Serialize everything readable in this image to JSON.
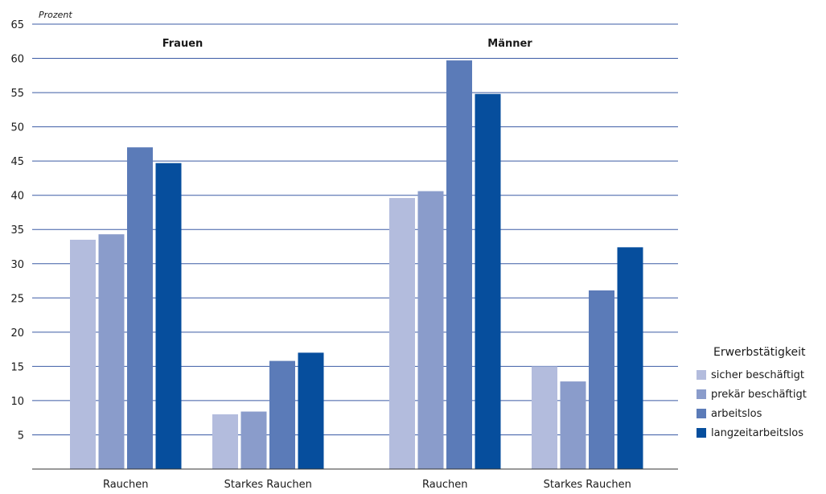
{
  "chart_data": {
    "type": "bar",
    "unit_label": "Prozent",
    "y_ticks": [
      5,
      10,
      15,
      20,
      25,
      30,
      35,
      40,
      45,
      50,
      55,
      60,
      65
    ],
    "ylim": [
      0,
      65
    ],
    "grid": true,
    "panels": [
      {
        "label": "Frauen",
        "categories": [
          "Rauchen",
          "Starkes Rauchen"
        ],
        "series": [
          {
            "name": "sicher beschäftigt",
            "values": [
              33.5,
              8.0
            ]
          },
          {
            "name": "prekär beschäftigt",
            "values": [
              34.3,
              8.4
            ]
          },
          {
            "name": "arbeitslos",
            "values": [
              47.0,
              15.8
            ]
          },
          {
            "name": "langzeitarbeitslos",
            "values": [
              44.7,
              17.0
            ]
          }
        ]
      },
      {
        "label": "Männer",
        "categories": [
          "Rauchen",
          "Starkes Rauchen"
        ],
        "series": [
          {
            "name": "sicher beschäftigt",
            "values": [
              39.6,
              15.0
            ]
          },
          {
            "name": "prekär beschäftigt",
            "values": [
              40.6,
              12.8
            ]
          },
          {
            "name": "arbeitslos",
            "values": [
              59.7,
              26.1
            ]
          },
          {
            "name": "langzeitarbeitslos",
            "values": [
              54.8,
              32.4
            ]
          }
        ]
      }
    ],
    "legend": {
      "title": "Erwerbstätigkeit",
      "placement": "right",
      "items": [
        {
          "name": "sicher beschäftigt",
          "color": "#b3bcdd"
        },
        {
          "name": "prekär beschäftigt",
          "color": "#8a9ccb"
        },
        {
          "name": "arbeitslos",
          "color": "#5b7bb8"
        },
        {
          "name": "langzeitarbeitslos",
          "color": "#064e9d"
        }
      ]
    },
    "colors": {
      "grid": "#3b5ba5",
      "axis": "#333333"
    }
  }
}
